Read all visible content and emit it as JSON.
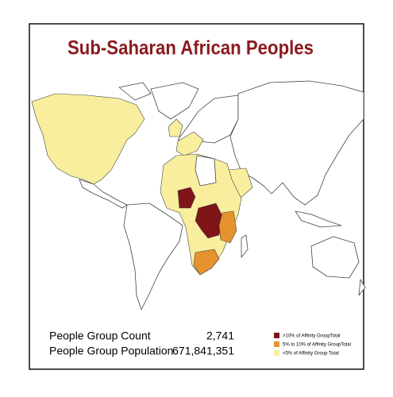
{
  "header": {
    "title": "Sub-Saharan African Peoples"
  },
  "stats": [
    {
      "label": "People Group Count",
      "value": "2,741"
    },
    {
      "label": "People Group Population",
      "value": "671,841,351"
    }
  ],
  "legend": [
    {
      "label": ">10% of Affinity GroupTotal",
      "color": "#7e1416"
    },
    {
      "label": "5% to 10% of Affinity GroupTotal",
      "color": "#e6922e"
    },
    {
      "label": "<5% of Affinity Group Total",
      "color": "#f8ee9e"
    }
  ]
}
